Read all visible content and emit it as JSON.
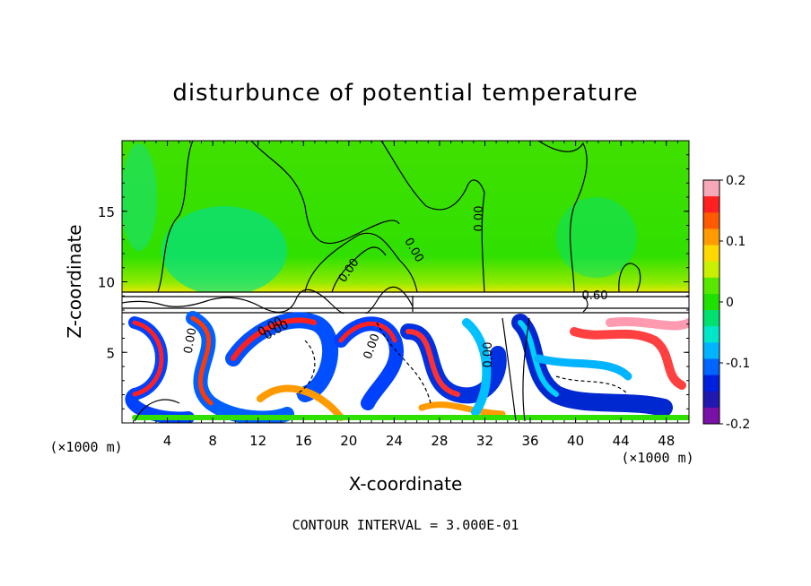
{
  "chart_data": {
    "type": "heatmap",
    "title": "disturbunce of potential temperature",
    "xlabel": "X-coordinate",
    "ylabel": "Z-coordinate",
    "x_unit_left": "(×1000 m)",
    "x_unit_right": "(×1000 m)",
    "xlim": [
      0,
      50
    ],
    "ylim": [
      0,
      20
    ],
    "xticks": [
      "4",
      "8",
      "12",
      "16",
      "20",
      "24",
      "28",
      "32",
      "36",
      "40",
      "44",
      "48"
    ],
    "yticks": [
      "5",
      "10",
      "15"
    ],
    "colorbar": {
      "range": [
        -0.2,
        0.2
      ],
      "ticks": [
        "0.2",
        "0.1",
        "0",
        "-0.1",
        "-0.2"
      ],
      "colors": [
        "#f7a8b8",
        "#ff2020",
        "#ff5a00",
        "#ff9a00",
        "#ffd800",
        "#c8f000",
        "#58e800",
        "#20e000",
        "#00e070",
        "#00e6c8",
        "#00b4ff",
        "#0064ff",
        "#0020e0",
        "#2018b0",
        "#7a10a8"
      ]
    },
    "contour_labels": [
      "0.00",
      "0.00",
      "0.00",
      "0.00",
      "0.00",
      "0.00",
      "0.00",
      "0.00",
      "0.60"
    ],
    "footer": "CONTOUR INTERVAL = 3.000E-01"
  }
}
